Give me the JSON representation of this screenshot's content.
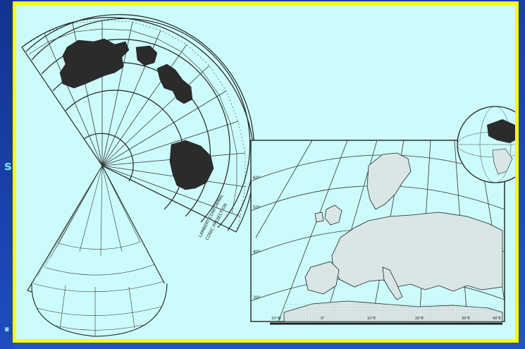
{
  "slide": {
    "edge_glyph_top": "s",
    "edge_glyph_bottom": "."
  },
  "figure": {
    "conic_label_1": "LAMBERT CONFORMAL",
    "conic_label_2": "CONIC PROJECTION",
    "europe_lat_labels": [
      "60°",
      "50°",
      "40°",
      "30°"
    ],
    "europe_lon_labels": [
      "10°W",
      "0°",
      "10°E",
      "20°E",
      "30°E",
      "40°E"
    ]
  },
  "colors": {
    "frame_border": "#ffff00",
    "paper": "#ccfbfb",
    "ink": "#222222",
    "land_dark": "#2b2b2b",
    "land_light": "#d8e6e6"
  }
}
